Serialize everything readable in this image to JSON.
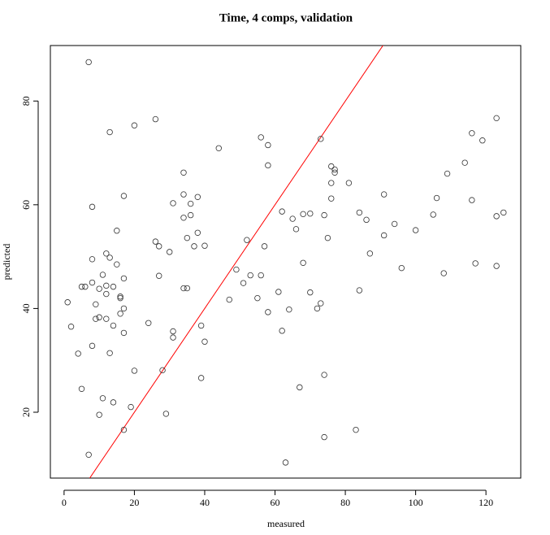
{
  "chart_data": {
    "type": "scatter",
    "title": "Time, 4 comps, validation",
    "xlabel": "measured",
    "ylabel": "predicted",
    "xlim": [
      -3.9,
      129.9
    ],
    "ylim": [
      7.3,
      90.7
    ],
    "xticks": [
      0,
      20,
      40,
      60,
      80,
      100,
      120
    ],
    "yticks": [
      20,
      40,
      60,
      80
    ],
    "marker_color": "#333333",
    "abline": {
      "intercept": 0,
      "slope": 1,
      "color": "#ff0000"
    },
    "x": [
      7,
      13,
      20,
      26,
      1,
      2,
      4,
      5,
      5,
      6,
      7,
      8,
      8,
      8,
      8,
      9,
      9,
      10,
      10,
      10,
      11,
      11,
      12,
      12,
      12,
      12,
      13,
      13,
      14,
      14,
      14,
      15,
      15,
      16,
      16,
      16,
      17,
      17,
      17,
      17,
      17,
      19,
      20,
      24,
      26,
      27,
      27,
      28,
      29,
      30,
      31,
      31,
      31,
      34,
      34,
      34,
      34,
      35,
      35,
      36,
      36,
      37,
      38,
      38,
      39,
      39,
      40,
      40,
      44,
      47,
      49,
      51,
      52,
      53,
      55,
      56,
      56,
      57,
      58,
      58,
      58,
      61,
      62,
      62,
      63,
      64,
      65,
      66,
      67,
      68,
      68,
      70,
      70,
      72,
      73,
      73,
      74,
      74,
      74,
      75,
      76,
      76,
      76,
      77,
      77,
      81,
      83,
      84,
      84,
      86,
      87,
      91,
      91,
      94,
      96,
      100,
      105,
      106,
      108,
      109,
      114,
      116,
      116,
      117,
      119,
      123,
      123,
      123,
      125
    ],
    "values": [
      87.5,
      74,
      75.3,
      76.5,
      41.2,
      36.5,
      31.3,
      24.5,
      44.2,
      44.2,
      11.8,
      59.6,
      49.5,
      45,
      32.8,
      40.8,
      38,
      43.8,
      38.3,
      19.5,
      46.5,
      22.7,
      50.6,
      44.4,
      42.8,
      38,
      49.8,
      31.4,
      44.2,
      36.7,
      21.9,
      55,
      48.5,
      42.3,
      42,
      39,
      45.8,
      40,
      35.3,
      16.6,
      61.7,
      21,
      28,
      37.2,
      52.9,
      52,
      46.3,
      28.1,
      19.7,
      50.9,
      60.3,
      35.6,
      34.4,
      66.2,
      62,
      57.5,
      43.9,
      53.6,
      43.9,
      60.2,
      58,
      52,
      61.5,
      54.6,
      36.7,
      26.6,
      52.1,
      33.6,
      70.9,
      41.7,
      47.5,
      44.9,
      53.2,
      46.4,
      42,
      73,
      46.4,
      52,
      71.5,
      67.6,
      39.3,
      43.2,
      58.7,
      35.7,
      10.3,
      39.8,
      57.3,
      55.3,
      24.8,
      58.2,
      48.8,
      58.3,
      43.1,
      40,
      72.7,
      41,
      58,
      27.2,
      15.2,
      53.6,
      67.4,
      64.2,
      61.2,
      66.8,
      66.2,
      64.2,
      16.6,
      58.5,
      43.5,
      57.1,
      50.6,
      62,
      54.1,
      56.3,
      47.8,
      55.1,
      58.1,
      61.3,
      46.8,
      66,
      68.1,
      73.8,
      60.9,
      48.7,
      72.4,
      76.7,
      57.8,
      48.2,
      58.5
    ]
  }
}
